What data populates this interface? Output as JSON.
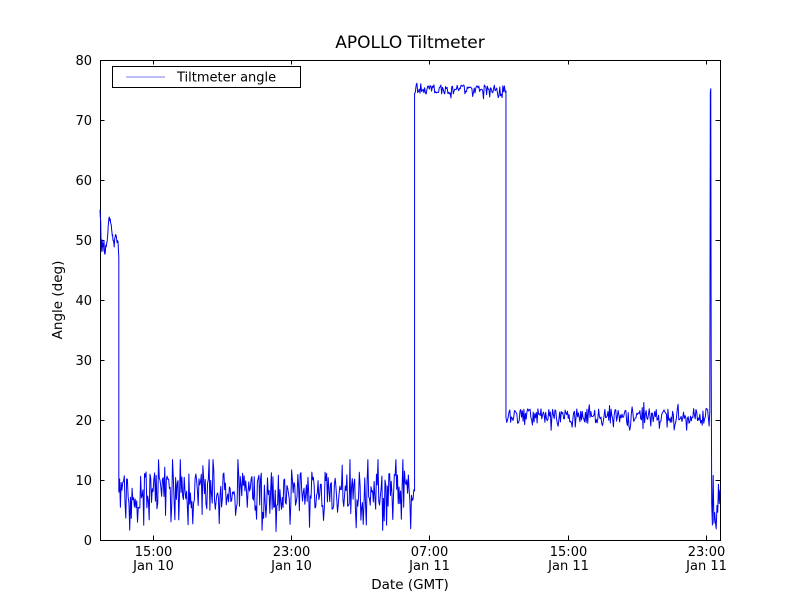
{
  "title": "APOLLO Tiltmeter",
  "axes": {
    "xlabel": "Date (GMT)",
    "ylabel": "Angle (deg)",
    "y_ticks": [
      "0",
      "10",
      "20",
      "30",
      "40",
      "50",
      "60",
      "70",
      "80"
    ],
    "x_ticks": [
      {
        "t": 15,
        "time": "15:00",
        "date": "Jan 10"
      },
      {
        "t": 23,
        "time": "23:00",
        "date": "Jan 10"
      },
      {
        "t": 31,
        "time": "07:00",
        "date": "Jan 11"
      },
      {
        "t": 39,
        "time": "15:00",
        "date": "Jan 11"
      },
      {
        "t": 47,
        "time": "23:00",
        "date": "Jan 11"
      }
    ]
  },
  "legend": {
    "label": "Tiltmeter angle",
    "sample_color": "#a9a9f3",
    "position": "upper left"
  },
  "colors": {
    "line": "#0000ee",
    "axis": "#000000",
    "text": "#000000",
    "background": "#ffffff"
  },
  "chart_data": {
    "type": "line",
    "title": "APOLLO Tiltmeter",
    "xlabel": "Date (GMT)",
    "ylabel": "Angle (deg)",
    "series": [
      {
        "name": "Tiltmeter angle",
        "color": "#0000ee"
      }
    ],
    "x_unit": "hours since Jan 10 00:00 GMT",
    "x_domain_hours": [
      11.93,
      47.82
    ],
    "y_domain": [
      0,
      80
    ],
    "grid": false,
    "legend_position": "upper left",
    "noise_seed": 20,
    "sample_step_hours": 0.045,
    "segments": [
      {
        "id": "initial-50s-plateau",
        "kind": "anchors",
        "jitter": 0.5,
        "points": [
          [
            11.93,
            54.8
          ],
          [
            11.97,
            53.0
          ],
          [
            12.0,
            48.3
          ],
          [
            12.05,
            49.8
          ],
          [
            12.1,
            48.2
          ],
          [
            12.16,
            50.2
          ],
          [
            12.2,
            47.6
          ],
          [
            12.28,
            49.0
          ],
          [
            12.36,
            50.5
          ],
          [
            12.45,
            53.3
          ],
          [
            12.52,
            53.6
          ],
          [
            12.6,
            52.2
          ],
          [
            12.68,
            50.0
          ],
          [
            12.75,
            48.8
          ],
          [
            12.82,
            51.3
          ],
          [
            12.9,
            50.2
          ],
          [
            12.97,
            49.6
          ],
          [
            13.02,
            46.5
          ]
        ]
      },
      {
        "id": "low-band",
        "kind": "noisy",
        "t": [
          13.02,
          30.14
        ],
        "mean": 8.2,
        "amp": 3.1,
        "spike_prob": 0.25,
        "spike_amp": 3.4,
        "clip": [
          1.0,
          13.4
        ]
      },
      {
        "id": "high-band-75",
        "kind": "noisy",
        "t": [
          30.14,
          35.43
        ],
        "mean": 75.1,
        "amp": 0.8,
        "spike_prob": 0.15,
        "spike_amp": 0.9,
        "clip": [
          73.4,
          76.5
        ]
      },
      {
        "id": "mid-band-20",
        "kind": "noisy",
        "t": [
          35.43,
          47.15
        ],
        "mean": 20.7,
        "amp": 1.2,
        "spike_prob": 0.15,
        "spike_amp": 1.4,
        "clip": [
          18.3,
          23.3
        ]
      },
      {
        "id": "end-spike-75",
        "kind": "anchors",
        "jitter": 0.0,
        "points": [
          [
            47.15,
            20.3
          ],
          [
            47.19,
            19.0
          ],
          [
            47.23,
            21.5
          ],
          [
            47.26,
            74.6
          ],
          [
            47.285,
            75.2
          ],
          [
            47.31,
            30.0
          ],
          [
            47.34,
            6.0
          ],
          [
            47.38,
            2.5
          ]
        ]
      },
      {
        "id": "end-noise",
        "kind": "noisy",
        "t": [
          47.38,
          47.82
        ],
        "mean": 5.5,
        "amp": 4.5,
        "spike_prob": 0.3,
        "spike_amp": 3.0,
        "clip": [
          0.2,
          12.5
        ]
      }
    ]
  }
}
